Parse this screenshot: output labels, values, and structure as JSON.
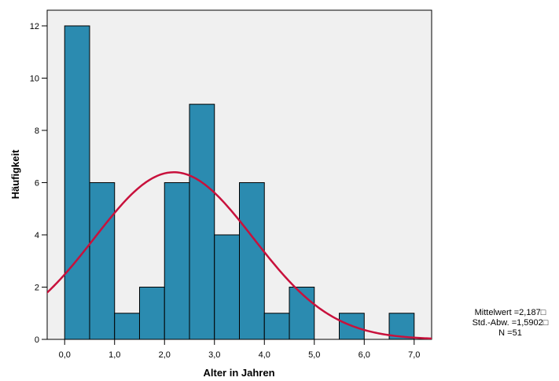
{
  "chart_data": {
    "type": "bar",
    "title": "",
    "xlabel": "Alter in Jahren",
    "ylabel": "Häufigkeit",
    "bin_edges": [
      0.0,
      0.5,
      1.0,
      1.5,
      2.0,
      2.5,
      3.0,
      3.5,
      4.0,
      4.5,
      5.0,
      5.5,
      6.0,
      6.5,
      7.0
    ],
    "values": [
      12,
      6,
      1,
      2,
      6,
      9,
      4,
      6,
      1,
      2,
      0,
      1,
      0,
      1
    ],
    "xlim": [
      -0.35,
      7.35
    ],
    "ylim": [
      0,
      12.6
    ],
    "x_ticks": [
      0,
      1,
      2,
      3,
      4,
      5,
      6,
      7
    ],
    "x_tick_labels": [
      "0,0",
      "1,0",
      "2,0",
      "3,0",
      "4,0",
      "5,0",
      "6,0",
      "7,0"
    ],
    "y_ticks": [
      0,
      2,
      4,
      6,
      8,
      10,
      12
    ],
    "y_tick_labels": [
      "0",
      "2",
      "4",
      "6",
      "8",
      "10",
      "12"
    ],
    "grid": false,
    "bar_color": "#2b8bb0",
    "plot_background": "#f0f0f0",
    "normal_curve": {
      "color": "#c8113c",
      "mean": 2.187,
      "sd": 1.5902,
      "n": 51,
      "bin_width": 0.5
    },
    "stats": {
      "mean_label": "Mittelwert =2,187□",
      "sd_label": "Std.-Abw. =1,5902□",
      "n_label": "N =51"
    }
  }
}
